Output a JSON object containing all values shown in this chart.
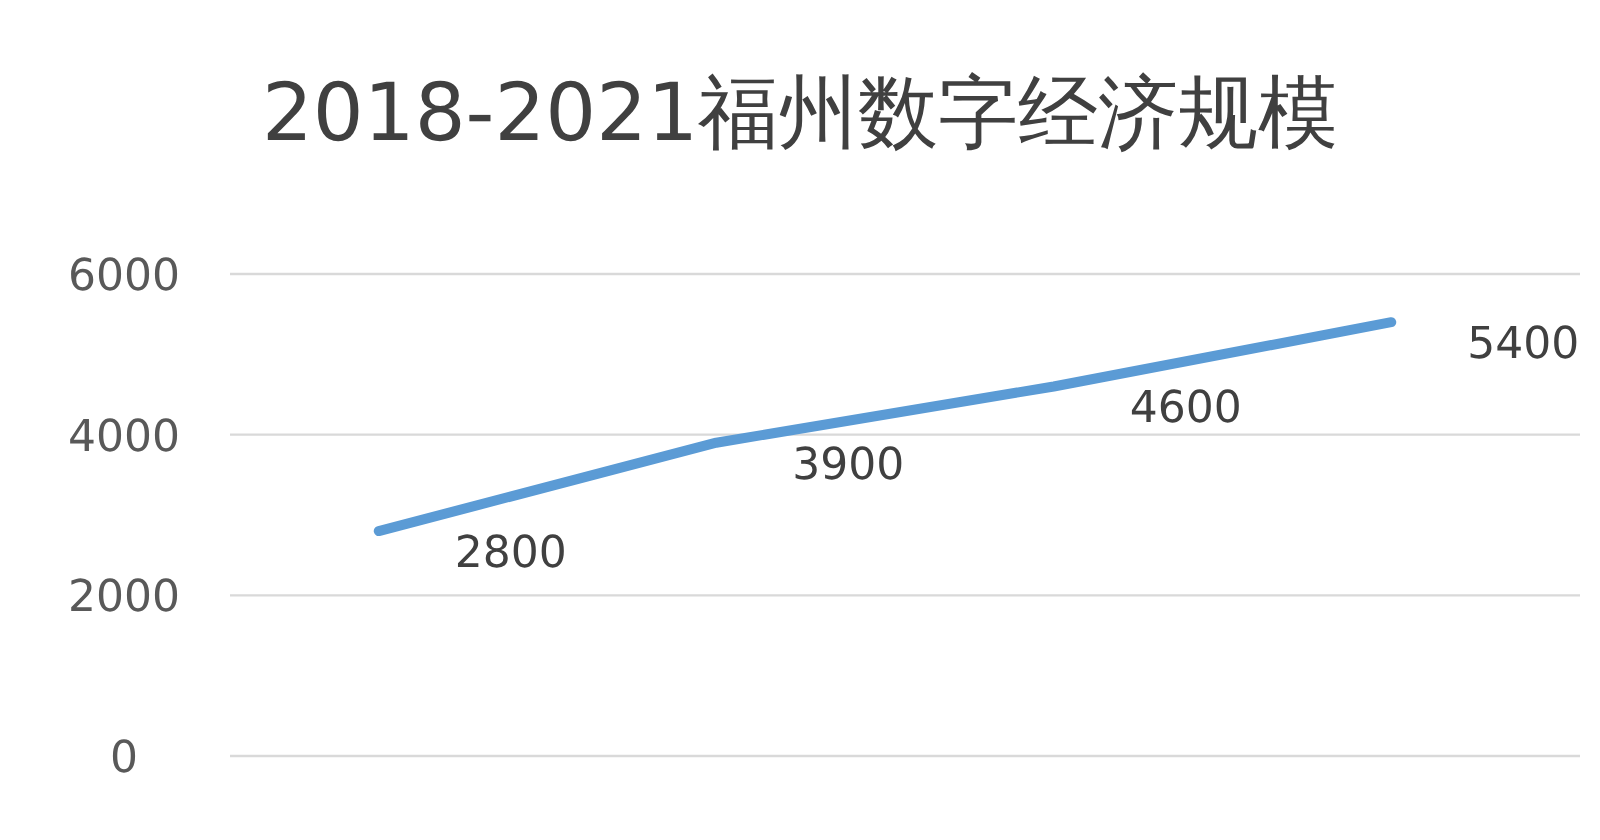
{
  "chart_data": {
    "type": "line",
    "title": "2018-2021福州数字经济规模",
    "categories": [
      null,
      null,
      null,
      null
    ],
    "values": [
      2800,
      3900,
      4600,
      5400
    ],
    "color": "#5b9bd5",
    "ylim": [
      0,
      6000
    ],
    "yticks": [
      0,
      2000,
      4000,
      6000
    ],
    "grid": "y",
    "data_labels": true
  }
}
